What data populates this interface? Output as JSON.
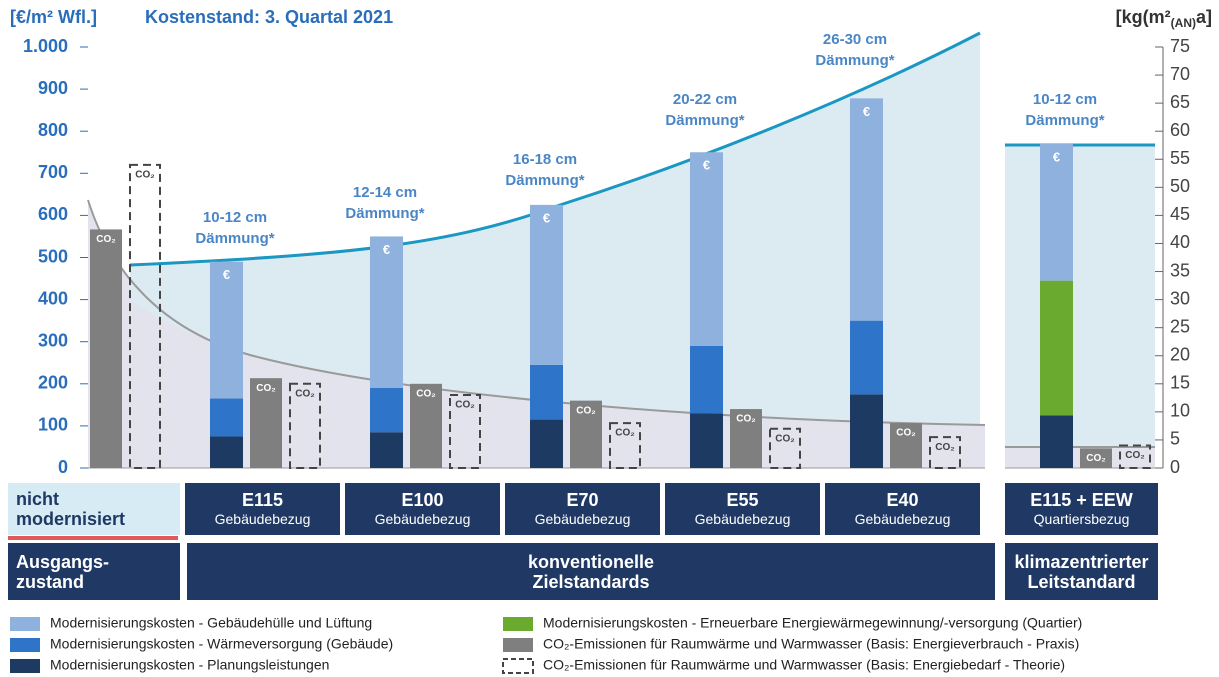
{
  "chart_data": {
    "type": "bar",
    "title": "Kostenstand: 3. Quartal 2021",
    "ylabel": "[€/m² Wfl.]",
    "y2label": [
      "[kg(m²",
      "(AN)",
      "a]"
    ],
    "categories": [
      "nicht modernisiert",
      "E115",
      "E100",
      "E70",
      "E55",
      "E40",
      "E115 + EEW"
    ],
    "category_sublabels": [
      null,
      "Gebäudebezug",
      "Gebäudebezug",
      "Gebäudebezug",
      "Gebäudebezug",
      "Gebäudebezug",
      "Quartiersbezug"
    ],
    "category_groups": [
      "Ausgangs-zustand",
      "konventionelle Zielstandards",
      "klimazentrierter Leitstandard"
    ],
    "annotations": [
      [
        "10-12 cm",
        "Dämmung*"
      ],
      [
        "12-14 cm",
        "Dämmung*"
      ],
      [
        "16-18 cm",
        "Dämmung*"
      ],
      [
        "20-22 cm",
        "Dämmung*"
      ],
      [
        "26-30 cm",
        "Dämmung*"
      ],
      [
        "10-12 cm",
        "Dämmung*"
      ]
    ],
    "icons": {
      "cost": "€",
      "co2": "CO₂"
    },
    "series": [
      {
        "name": "Modernisierungskosten - Gebäudehülle und Lüftung",
        "color": "#8fb1dd",
        "values": [
          null,
          325,
          360,
          380,
          460,
          528,
          325
        ]
      },
      {
        "name": "Modernisierungskosten - Wärmeversorgung (Gebäude)",
        "color": "#2e74c9",
        "values": [
          null,
          90,
          105,
          130,
          160,
          175,
          null
        ]
      },
      {
        "name": "Modernisierungskosten - Planungsleistungen",
        "color": "#1d3a63",
        "values": [
          null,
          75,
          85,
          115,
          130,
          175,
          125
        ]
      },
      {
        "name": "Modernisierungskosten - Erneuerbare Energiewärmegewinnung/-versorgung (Quartier)",
        "color": "#6aaa2e",
        "values": [
          null,
          null,
          null,
          null,
          null,
          null,
          320
        ]
      },
      {
        "name": "CO₂-Emissionen für Raumwärme und Warmwasser (Basis: Energieverbrauch - Praxis)",
        "color": "#7f7f7f",
        "axis": "y2",
        "values": [
          42.5,
          16,
          15,
          12,
          10.5,
          8,
          3.5
        ]
      },
      {
        "name": "CO₂-Emissionen für Raumwärme und Warmwasser (Basis: Energiebedarf - Theorie)",
        "color": "#444444",
        "axis": "y2",
        "style": "dashed",
        "values": [
          54,
          15,
          13,
          8,
          7,
          5.5,
          4
        ]
      }
    ],
    "ylim": [
      0,
      1000
    ],
    "yticks": [
      0,
      100,
      200,
      300,
      400,
      500,
      600,
      700,
      800,
      900,
      {
        "value": 1000,
        "label": "1.000"
      }
    ],
    "y2lim": [
      0,
      75
    ],
    "y2ticks": [
      0,
      5,
      10,
      15,
      20,
      25,
      30,
      35,
      40,
      45,
      50,
      55,
      60,
      65,
      70,
      75
    ]
  }
}
